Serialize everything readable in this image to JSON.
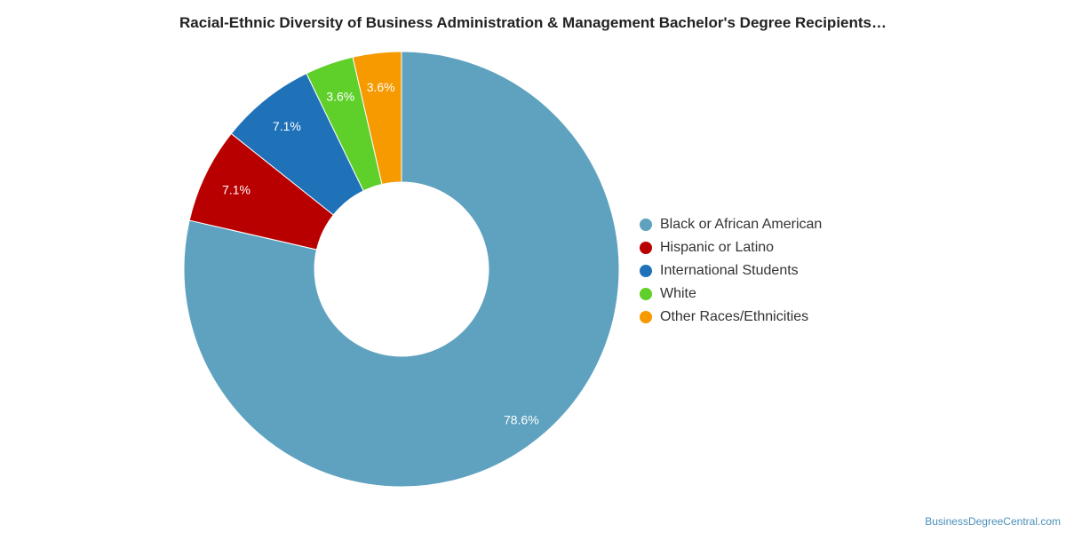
{
  "chart_data": {
    "type": "pie",
    "donut": true,
    "title": "Racial-Ethnic Diversity of Business Administration & Management Bachelor's Degree Recipients…",
    "legend_position": "right",
    "slices": [
      {
        "name": "Black or African American",
        "value": 78.6,
        "label": "78.6%",
        "color": "#5ea2bf"
      },
      {
        "name": "Hispanic or Latino",
        "value": 7.1,
        "label": "7.1%",
        "color": "#b80000"
      },
      {
        "name": "International Students",
        "value": 7.1,
        "label": "7.1%",
        "color": "#1f72b8"
      },
      {
        "name": "White",
        "value": 3.6,
        "label": "3.6%",
        "color": "#5fcf2a"
      },
      {
        "name": "Other Races/Ethnicities",
        "value": 3.6,
        "label": "3.6%",
        "color": "#f79a00"
      }
    ]
  },
  "source": "BusinessDegreeCentral.com"
}
